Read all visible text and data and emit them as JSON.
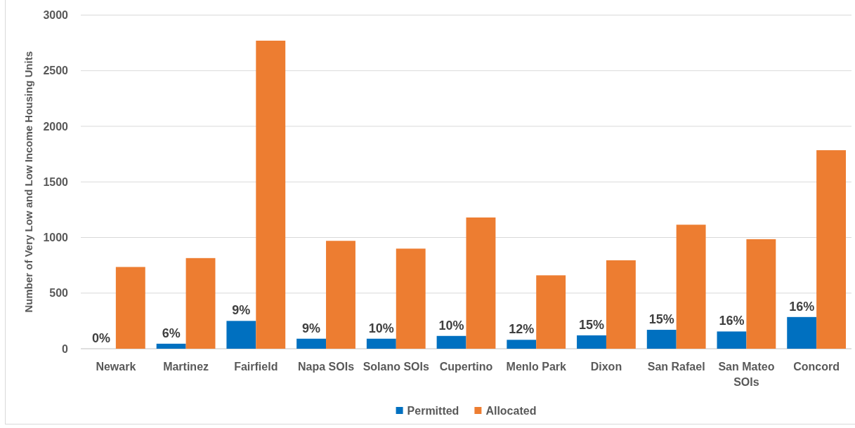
{
  "chart_data": {
    "type": "bar",
    "ylabel": "Number of Very Low and Low Income Housing Units",
    "categories": [
      "Newark",
      "Martinez",
      "Fairfield",
      "Napa SOIs",
      "Solano SOIs",
      "Cupertino",
      "Menlo Park",
      "Dixon",
      "San Rafael",
      "San Mateo SOIs",
      "Concord"
    ],
    "series": [
      {
        "name": "Permitted",
        "color": "#0070c0",
        "values": [
          0,
          45,
          250,
          90,
          90,
          115,
          80,
          120,
          170,
          155,
          285
        ]
      },
      {
        "name": "Allocated",
        "color": "#ed7d31",
        "values": [
          735,
          815,
          2770,
          970,
          900,
          1180,
          660,
          795,
          1115,
          985,
          1785
        ]
      }
    ],
    "annotations": [
      {
        "text": "0%",
        "x": "Newark",
        "y": 0
      },
      {
        "text": "6%",
        "x": "Martinez",
        "y": 45
      },
      {
        "text": "9%",
        "x": "Fairfield",
        "y": 250
      },
      {
        "text": "9%",
        "x": "Napa SOIs",
        "y": 90
      },
      {
        "text": "10%",
        "x": "Solano SOIs",
        "y": 90
      },
      {
        "text": "10%",
        "x": "Cupertino",
        "y": 115
      },
      {
        "text": "12%",
        "x": "Menlo Park",
        "y": 80
      },
      {
        "text": "15%",
        "x": "Dixon",
        "y": 120
      },
      {
        "text": "15%",
        "x": "San Rafael",
        "y": 170
      },
      {
        "text": "16%",
        "x": "San Mateo SOIs",
        "y": 155
      },
      {
        "text": "16%",
        "x": "Concord",
        "y": 285
      }
    ],
    "ylim": [
      0,
      3000
    ],
    "yticks": [
      0,
      500,
      1000,
      1500,
      2000,
      2500,
      3000
    ],
    "grid": "y",
    "legend": "bottom"
  }
}
